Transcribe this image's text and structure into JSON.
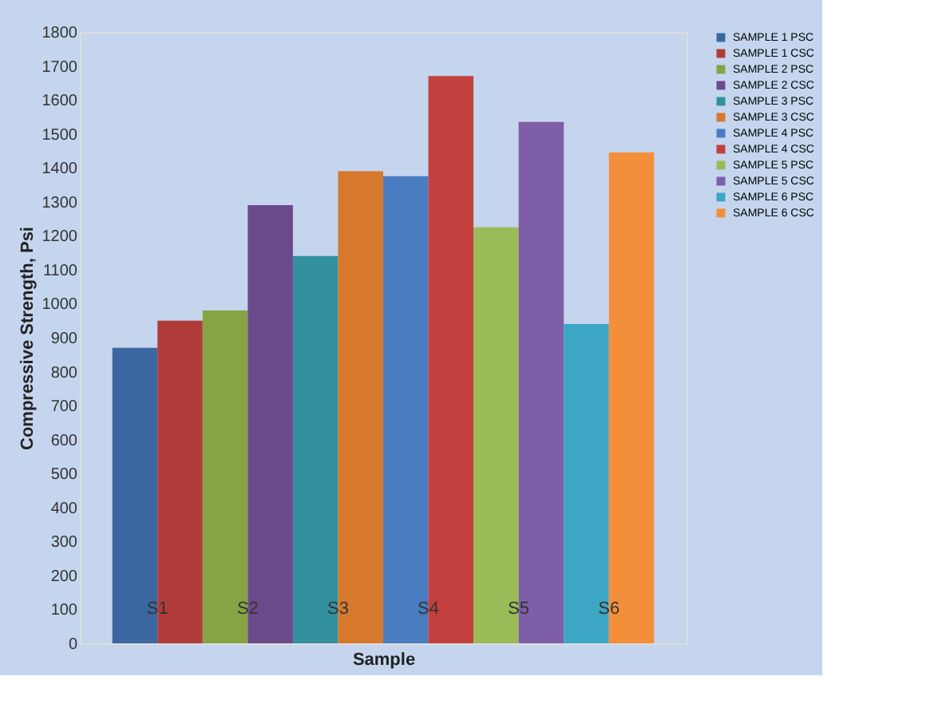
{
  "chart_data": {
    "type": "bar",
    "xlabel": "Sample",
    "ylabel": "Compressive Strength, Psi",
    "categories": [
      null
    ],
    "series": [
      {
        "name": "SAMPLE 1 PSC",
        "color": "#3b67a0",
        "values": [
          870
        ]
      },
      {
        "name": "SAMPLE 1 CSC",
        "color": "#b03c3a",
        "values": [
          950
        ]
      },
      {
        "name": "SAMPLE 2 PSC",
        "color": "#86a444",
        "values": [
          980
        ]
      },
      {
        "name": "SAMPLE 2 CSC",
        "color": "#6b4a8c",
        "values": [
          1290
        ]
      },
      {
        "name": "SAMPLE 3 PSC",
        "color": "#33919f",
        "values": [
          1140
        ]
      },
      {
        "name": "SAMPLE 3 CSC",
        "color": "#d7792d",
        "values": [
          1390
        ]
      },
      {
        "name": "SAMPLE 4 PSC",
        "color": "#4a7cc2",
        "values": [
          1375
        ]
      },
      {
        "name": "SAMPLE 4 CSC",
        "color": "#c2403e",
        "values": [
          1670
        ]
      },
      {
        "name": "SAMPLE 5 PSC",
        "color": "#9bbb58",
        "values": [
          1225
        ]
      },
      {
        "name": "SAMPLE 5 CSC",
        "color": "#7e5ea6",
        "values": [
          1535
        ]
      },
      {
        "name": "SAMPLE 6 PSC",
        "color": "#3ca6c4",
        "values": [
          940
        ]
      },
      {
        "name": "SAMPLE 6 CSC",
        "color": "#f38f3a",
        "values": [
          1445
        ]
      }
    ],
    "ylim": [
      0,
      1800
    ],
    "yticks": [
      0,
      100,
      200,
      300,
      400,
      500,
      600,
      700,
      800,
      900,
      1000,
      1100,
      1200,
      1300,
      1400,
      1500,
      1600,
      1700,
      1800
    ],
    "grid": false,
    "legend": "right",
    "tick_labels": "y",
    "annotations": [
      "S1",
      "S2",
      "S3",
      "S4",
      "S5",
      "S6"
    ]
  }
}
